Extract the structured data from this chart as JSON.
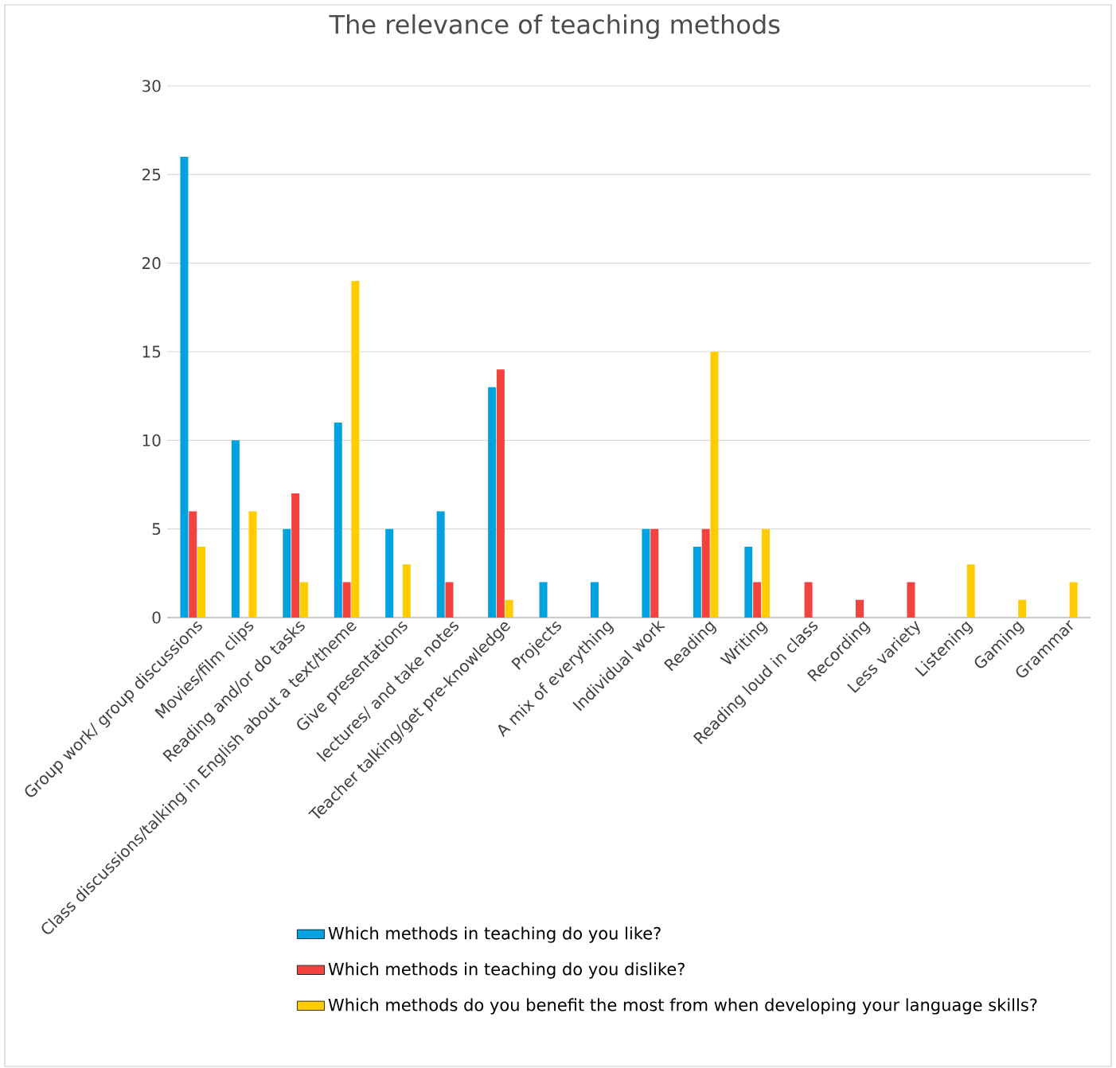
{
  "chart_data": {
    "type": "bar",
    "title": "The relevance of teaching methods",
    "categories": [
      "Group work/ group discussions",
      "Movies/film clips",
      "Reading and/or do tasks",
      "Class discussions/talking in English about a text/theme",
      "Give presentations",
      "lectures/ and take notes",
      "Teacher talking/get pre-knowledge",
      "Projects",
      "A mix of everything",
      "Individual work",
      "Reading",
      "Writing",
      "Reading loud in class",
      "Recording",
      "Less variety",
      "Listening",
      "Gaming",
      "Grammar"
    ],
    "series": [
      {
        "name": "Which methods in teaching do you like?",
        "color": "#00a2e0",
        "values": [
          26,
          10,
          5,
          11,
          5,
          6,
          13,
          2,
          2,
          5,
          4,
          4,
          null,
          null,
          null,
          null,
          null,
          null
        ]
      },
      {
        "name": "Which methods in teaching do you dislike?",
        "color": "#f4433f",
        "values": [
          6,
          null,
          7,
          2,
          null,
          2,
          14,
          null,
          null,
          5,
          5,
          2,
          2,
          1,
          2,
          null,
          null,
          null
        ]
      },
      {
        "name": "Which methods do you benefit the most from when developing your language skills?",
        "color": "#ffcc00",
        "values": [
          4,
          6,
          2,
          19,
          3,
          null,
          1,
          null,
          null,
          null,
          15,
          5,
          null,
          null,
          null,
          3,
          1,
          2
        ]
      }
    ],
    "ylim": [
      0,
      30
    ],
    "yticks": [
      0,
      5,
      10,
      15,
      20,
      25,
      30
    ],
    "grid": "y",
    "legend": "bottom"
  }
}
